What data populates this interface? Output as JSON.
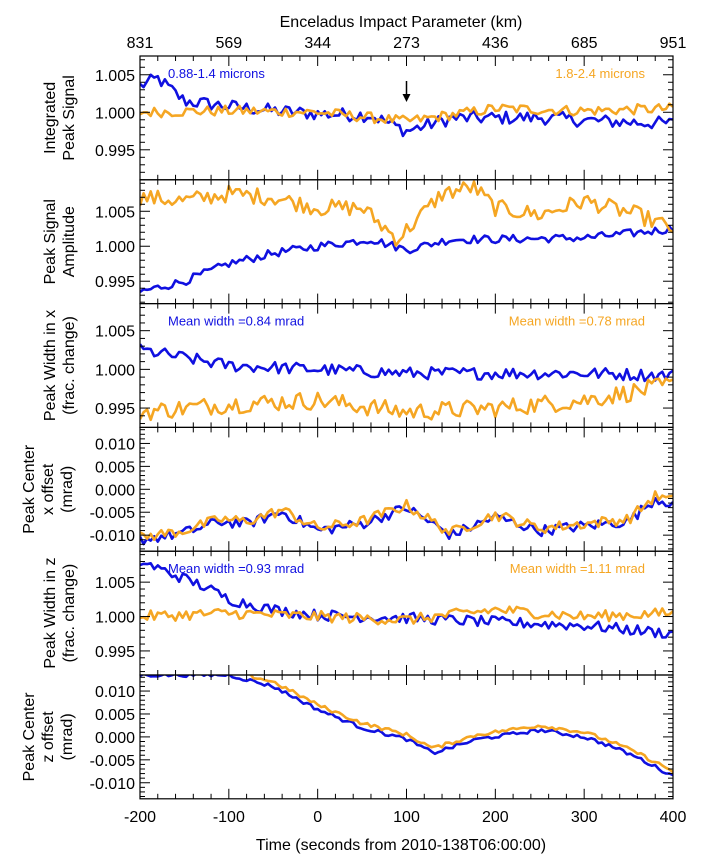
{
  "chart_data": {
    "type": "line",
    "colors": {
      "series_1": "#1010E0",
      "series_2": "#F5A623"
    },
    "x_axis": {
      "label": "Time (seconds from 2010-138T06:00:00)",
      "range": [
        -200,
        400
      ],
      "ticks": [
        -200,
        -100,
        0,
        100,
        200,
        300,
        400
      ],
      "tick_labels": [
        "-200",
        "-100",
        "0",
        "100",
        "200",
        "300",
        "400"
      ]
    },
    "top_axis": {
      "label": "Enceladus Impact Parameter (km)",
      "tick_positions": [
        -200,
        -100,
        0,
        100,
        200,
        300,
        400
      ],
      "tick_labels": [
        "831",
        "569",
        "344",
        "273",
        "436",
        "685",
        "951"
      ]
    },
    "grid": false,
    "panels": [
      {
        "ylabel_lines": [
          "Integrated",
          "Peak Signal"
        ],
        "ylim": [
          0.991,
          1.0075
        ],
        "yticks": [
          0.995,
          1.0,
          1.005
        ],
        "ytick_labels": [
          "0.995",
          "1.000",
          "1.005"
        ],
        "annotations_left": "0.88-1.4 microns",
        "annotations_right": "1.8-2.4 microns",
        "arrow_at_x": 100,
        "series": [
          {
            "color": "series_1",
            "knots": [
              [
                -200,
                1.0035
              ],
              [
                -180,
                1.0045
              ],
              [
                -150,
                1.0015
              ],
              [
                -100,
                1.0008
              ],
              [
                -50,
                1.0002
              ],
              [
                0,
                0.9998
              ],
              [
                60,
                0.9996
              ],
              [
                100,
                0.9975
              ],
              [
                150,
                0.9992
              ],
              [
                250,
                0.9993
              ],
              [
                320,
                0.9988
              ],
              [
                400,
                0.9985
              ]
            ],
            "noise": 0.0009
          },
          {
            "color": "series_2",
            "knots": [
              [
                -200,
                1.0
              ],
              [
                -100,
                1.0002
              ],
              [
                0,
                1.0
              ],
              [
                100,
                0.9988
              ],
              [
                200,
                1.0005
              ],
              [
                300,
                1.0002
              ],
              [
                400,
                1.0005
              ]
            ],
            "noise": 0.0007
          }
        ]
      },
      {
        "ylabel_lines": [
          "Peak Signal",
          "Amplitude"
        ],
        "ylim": [
          0.9918,
          1.0095
        ],
        "yticks": [
          0.995,
          1.0,
          1.005
        ],
        "ytick_labels": [
          "0.995",
          "1.000",
          "1.005"
        ],
        "series": [
          {
            "color": "series_1",
            "knots": [
              [
                -200,
                0.9935
              ],
              [
                -150,
                0.995
              ],
              [
                -100,
                0.9975
              ],
              [
                -50,
                0.999
              ],
              [
                0,
                1.0
              ],
              [
                60,
                1.001
              ],
              [
                100,
                0.9995
              ],
              [
                150,
                1.001
              ],
              [
                200,
                1.001
              ],
              [
                300,
                1.0012
              ],
              [
                350,
                1.0018
              ],
              [
                400,
                1.0025
              ]
            ],
            "noise": 0.0006
          },
          {
            "color": "series_2",
            "knots": [
              [
                -200,
                1.007
              ],
              [
                -150,
                1.0065
              ],
              [
                -100,
                1.0075
              ],
              [
                -50,
                1.007
              ],
              [
                0,
                1.0055
              ],
              [
                50,
                1.0055
              ],
              [
                90,
                1.001
              ],
              [
                140,
                1.0075
              ],
              [
                175,
                1.0085
              ],
              [
                200,
                1.0055
              ],
              [
                250,
                1.0045
              ],
              [
                300,
                1.0065
              ],
              [
                360,
                1.0045
              ],
              [
                400,
                1.0025
              ]
            ],
            "noise": 0.0012
          }
        ]
      },
      {
        "ylabel_lines": [
          "Peak Width in x",
          "(frac. change)"
        ],
        "ylim": [
          0.9925,
          1.0085
        ],
        "yticks": [
          0.995,
          1.0,
          1.005
        ],
        "ytick_labels": [
          "0.995",
          "1.000",
          "1.005"
        ],
        "annotations_left": "Mean width =0.84 mrad",
        "annotations_right": "Mean width =0.78 mrad",
        "series": [
          {
            "color": "series_1",
            "knots": [
              [
                -200,
                1.0025
              ],
              [
                -150,
                1.0015
              ],
              [
                -100,
                1.0005
              ],
              [
                0,
                1.0
              ],
              [
                100,
                0.9995
              ],
              [
                200,
                0.9995
              ],
              [
                300,
                0.9995
              ],
              [
                400,
                0.9992
              ]
            ],
            "noise": 0.0008
          },
          {
            "color": "series_2",
            "knots": [
              [
                -200,
                0.9945
              ],
              [
                -100,
                0.9955
              ],
              [
                0,
                0.996
              ],
              [
                100,
                0.9945
              ],
              [
                200,
                0.995
              ],
              [
                300,
                0.996
              ],
              [
                400,
                0.998
              ]
            ],
            "noise": 0.0012
          }
        ]
      },
      {
        "ylabel_lines": [
          "Peak Center",
          "x offset",
          "(mrad)"
        ],
        "ylim": [
          -0.0135,
          0.0135
        ],
        "yticks": [
          -0.01,
          -0.005,
          0.0,
          0.005,
          0.01
        ],
        "ytick_labels": [
          "-0.010",
          "-0.005",
          "0.000",
          "0.005",
          "0.010"
        ],
        "series": [
          {
            "color": "series_1",
            "knots": [
              [
                -200,
                -0.011
              ],
              [
                -150,
                -0.0095
              ],
              [
                -110,
                -0.007
              ],
              [
                -80,
                -0.0075
              ],
              [
                -40,
                -0.005
              ],
              [
                0,
                -0.009
              ],
              [
                50,
                -0.0075
              ],
              [
                100,
                -0.004
              ],
              [
                150,
                -0.01
              ],
              [
                200,
                -0.006
              ],
              [
                250,
                -0.009
              ],
              [
                300,
                -0.008
              ],
              [
                350,
                -0.007
              ],
              [
                380,
                -0.002
              ],
              [
                400,
                -0.003
              ]
            ],
            "noise": 0.0012
          },
          {
            "color": "series_2",
            "knots": [
              [
                -200,
                -0.0105
              ],
              [
                -150,
                -0.009
              ],
              [
                -110,
                -0.0065
              ],
              [
                -80,
                -0.007
              ],
              [
                -40,
                -0.0045
              ],
              [
                0,
                -0.0085
              ],
              [
                50,
                -0.007
              ],
              [
                100,
                -0.0035
              ],
              [
                150,
                -0.0095
              ],
              [
                200,
                -0.0055
              ],
              [
                250,
                -0.0085
              ],
              [
                300,
                -0.0075
              ],
              [
                350,
                -0.0065
              ],
              [
                380,
                -0.0015
              ],
              [
                400,
                -0.0025
              ]
            ],
            "noise": 0.0012
          }
        ]
      },
      {
        "ylabel_lines": [
          "Peak Width in z",
          "(frac. change)"
        ],
        "ylim": [
          0.9915,
          1.0095
        ],
        "yticks": [
          0.995,
          1.0,
          1.005
        ],
        "ytick_labels": [
          "0.995",
          "1.000",
          "1.005"
        ],
        "annotations_left": "Mean width =0.93 mrad",
        "annotations_right": "Mean width =1.11 mrad",
        "series": [
          {
            "color": "series_1",
            "knots": [
              [
                -200,
                1.008
              ],
              [
                -170,
                1.0065
              ],
              [
                -130,
                1.0045
              ],
              [
                -100,
                1.0025
              ],
              [
                -50,
                1.001
              ],
              [
                0,
                1.0002
              ],
              [
                100,
                0.9998
              ],
              [
                200,
                0.9992
              ],
              [
                300,
                0.9987
              ],
              [
                400,
                0.9975
              ]
            ],
            "noise": 0.0008
          },
          {
            "color": "series_2",
            "knots": [
              [
                -200,
                1.0
              ],
              [
                -100,
                1.0005
              ],
              [
                0,
                1.0
              ],
              [
                100,
                0.9995
              ],
              [
                200,
                1.001
              ],
              [
                300,
                1.0
              ],
              [
                400,
                1.0005
              ]
            ],
            "noise": 0.0008
          }
        ]
      },
      {
        "ylabel_lines": [
          "Peak Center",
          "z offset",
          "(mrad)"
        ],
        "ylim": [
          -0.0135,
          0.0135
        ],
        "yticks": [
          -0.01,
          -0.005,
          0.0,
          0.005,
          0.01
        ],
        "ytick_labels": [
          "-0.010",
          "-0.005",
          "0.000",
          "0.005",
          "0.010"
        ],
        "series": [
          {
            "color": "series_1",
            "knots": [
              [
                -100,
                0.0135
              ],
              [
                -50,
                0.011
              ],
              [
                0,
                0.006
              ],
              [
                50,
                0.002
              ],
              [
                100,
                -0.0005
              ],
              [
                130,
                -0.0035
              ],
              [
                180,
                -0.0005
              ],
              [
                250,
                0.0015
              ],
              [
                300,
                0.0
              ],
              [
                330,
                -0.002
              ],
              [
                360,
                -0.0045
              ],
              [
                400,
                -0.0085
              ]
            ],
            "noise": 0.0004
          },
          {
            "color": "series_2",
            "knots": [
              [
                -100,
                0.0145
              ],
              [
                -50,
                0.012
              ],
              [
                0,
                0.007
              ],
              [
                50,
                0.003
              ],
              [
                100,
                0.0005
              ],
              [
                130,
                -0.0025
              ],
              [
                180,
                0.0005
              ],
              [
                250,
                0.0025
              ],
              [
                300,
                0.001
              ],
              [
                330,
                -0.001
              ],
              [
                360,
                -0.0035
              ],
              [
                400,
                -0.0075
              ]
            ],
            "noise": 0.0004
          }
        ]
      }
    ]
  }
}
